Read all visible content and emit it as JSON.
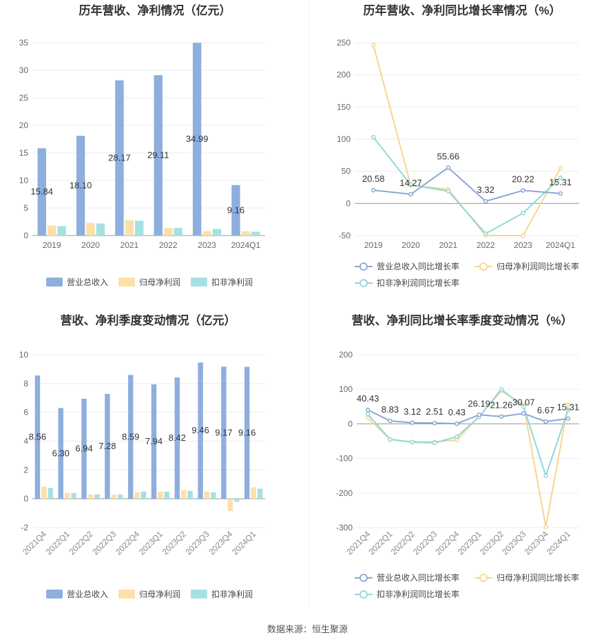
{
  "source": "数据来源：恒生聚源",
  "colors": {
    "revenue": "#8eaede",
    "netprofit": "#fddfa9",
    "deducted": "#a6e1e2",
    "rev_line": "#8aa7d6",
    "np_line": "#fbd48f",
    "ded_line": "#8fd8da"
  },
  "chart_data": [
    {
      "type": "bar",
      "title": "历年营收、净利情况（亿元）",
      "categories": [
        "2019",
        "2020",
        "2021",
        "2022",
        "2023",
        "2024Q1"
      ],
      "ylim": [
        0,
        35
      ],
      "yticks": [
        0,
        5,
        10,
        15,
        20,
        25,
        30,
        35
      ],
      "series": [
        {
          "name": "营业总收入",
          "values": [
            15.84,
            18.1,
            28.17,
            29.11,
            34.99,
            9.16
          ],
          "labels": [
            "15.84",
            "18.10",
            "28.17",
            "29.11",
            "34.99",
            "9.16"
          ]
        },
        {
          "name": "归母净利润",
          "values": [
            1.8,
            2.3,
            2.8,
            1.4,
            0.8,
            0.8
          ]
        },
        {
          "name": "扣非净利润",
          "values": [
            1.7,
            2.2,
            2.7,
            1.4,
            1.2,
            0.7
          ]
        }
      ],
      "legend": "bottom"
    },
    {
      "type": "line",
      "title": "历年营收、净利同比增长率情况（%）",
      "categories": [
        "2019",
        "2020",
        "2021",
        "2022",
        "2023",
        "2024Q1"
      ],
      "ylim": [
        -50,
        250
      ],
      "yticks": [
        -50,
        0,
        50,
        100,
        150,
        200,
        250
      ],
      "series": [
        {
          "name": "营业总收入同比增长率",
          "values": [
            20.58,
            14.27,
            55.66,
            3.32,
            20.22,
            15.31
          ],
          "labels": [
            "20.58",
            "14.27",
            "55.66",
            "3.32",
            "20.22",
            "15.31"
          ]
        },
        {
          "name": "归母净利润同比增长率",
          "values": [
            246,
            28,
            22,
            -50,
            -50,
            55
          ]
        },
        {
          "name": "扣非净利润同比增长率",
          "values": [
            103,
            29,
            19,
            -47,
            -15,
            40
          ]
        }
      ],
      "legend": "bottom"
    },
    {
      "type": "bar",
      "title": "营收、净利季度变动情况（亿元）",
      "categories": [
        "2021Q4",
        "2022Q1",
        "2022Q2",
        "2022Q3",
        "2022Q4",
        "2023Q1",
        "2023Q2",
        "2023Q3",
        "2023Q4",
        "2024Q1"
      ],
      "ylim": [
        -2,
        10
      ],
      "yticks": [
        -2,
        0,
        2,
        4,
        6,
        8,
        10
      ],
      "series": [
        {
          "name": "营业总收入",
          "values": [
            8.56,
            6.3,
            6.94,
            7.28,
            8.59,
            7.94,
            8.42,
            9.46,
            9.17,
            9.16
          ],
          "labels": [
            "8.56",
            "6.30",
            "6.94",
            "7.28",
            "8.59",
            "7.94",
            "8.42",
            "9.46",
            "9.17",
            "9.16"
          ]
        },
        {
          "name": "归母净利润",
          "values": [
            0.85,
            0.4,
            0.3,
            0.3,
            0.45,
            0.5,
            0.6,
            0.5,
            -0.85,
            0.8
          ]
        },
        {
          "name": "扣非净利润",
          "values": [
            0.75,
            0.4,
            0.3,
            0.3,
            0.5,
            0.5,
            0.55,
            0.45,
            -0.2,
            0.7
          ]
        }
      ],
      "legend": "bottom"
    },
    {
      "type": "line",
      "title": "营收、净利同比增长率季度变动情况（%）",
      "categories": [
        "2021Q4",
        "2022Q1",
        "2022Q2",
        "2022Q3",
        "2022Q4",
        "2023Q1",
        "2023Q2",
        "2023Q3",
        "2023Q4",
        "2024Q1"
      ],
      "ylim": [
        -300,
        200
      ],
      "yticks": [
        -300,
        -200,
        -100,
        0,
        100,
        200
      ],
      "series": [
        {
          "name": "营业总收入同比增长率",
          "values": [
            40.43,
            8.83,
            3.12,
            2.51,
            0.43,
            26.19,
            21.26,
            30.07,
            6.67,
            15.31
          ],
          "labels": [
            "40.43",
            "8.83",
            "3.12",
            "2.51",
            "0.43",
            "26.19",
            "21.26",
            "30.07",
            "6.67",
            "15.31"
          ]
        },
        {
          "name": "归母净利润同比增长率",
          "values": [
            17,
            -45,
            -52,
            -52,
            -47,
            22,
            95,
            55,
            -298,
            55
          ]
        },
        {
          "name": "扣非净利润同比增长率",
          "values": [
            28,
            -45,
            -53,
            -55,
            -37,
            20,
            100,
            50,
            -150,
            40
          ]
        }
      ],
      "legend": "bottom"
    }
  ]
}
